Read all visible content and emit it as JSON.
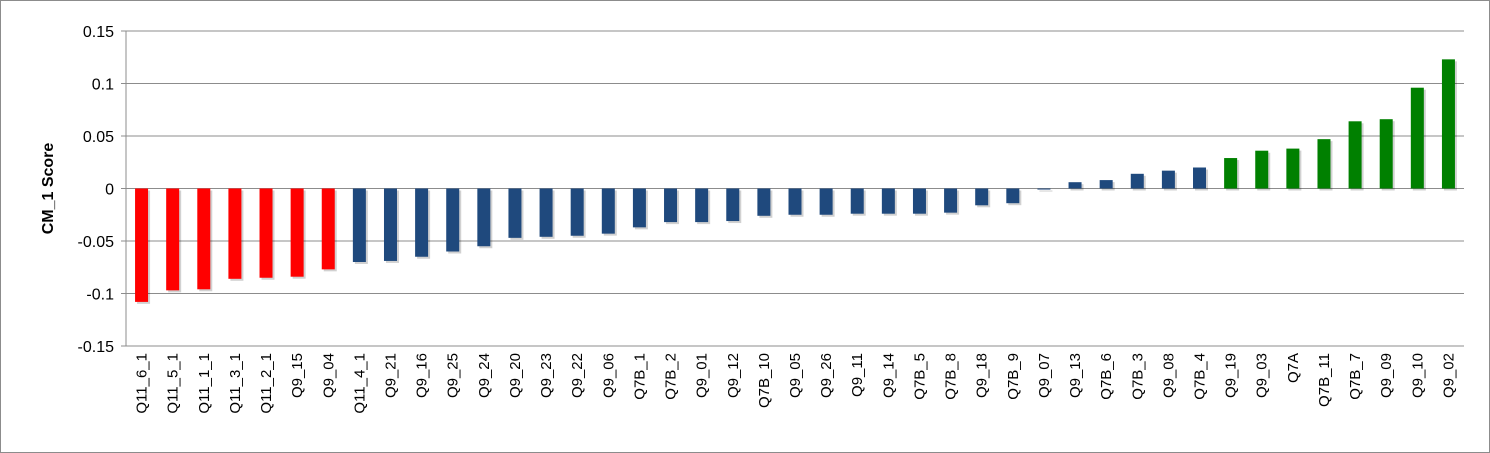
{
  "chart_data": {
    "type": "bar",
    "title": "",
    "xlabel": "",
    "ylabel": "CM_1 Score",
    "ylim": [
      -0.15,
      0.15
    ],
    "yticks": [
      0.15,
      0.1,
      0.05,
      0,
      -0.05,
      -0.1,
      -0.15
    ],
    "ytick_labels": [
      "0.15",
      "0.1",
      "0.05",
      "0",
      "-0.05",
      "-0.1",
      "-0.15"
    ],
    "grid": "horizontal",
    "legend": "none",
    "categories": [
      "Q11_6_1",
      "Q11_5_1",
      "Q11_1_1",
      "Q11_3_1",
      "Q11_2_1",
      "Q9_15",
      "Q9_04",
      "Q11_4_1",
      "Q9_21",
      "Q9_16",
      "Q9_25",
      "Q9_24",
      "Q9_20",
      "Q9_23",
      "Q9_22",
      "Q9_06",
      "Q7B_1",
      "Q7B_2",
      "Q9_01",
      "Q9_12",
      "Q7B_10",
      "Q9_05",
      "Q9_26",
      "Q9_11",
      "Q9_14",
      "Q7B_5",
      "Q7B_8",
      "Q9_18",
      "Q7B_9",
      "Q9_07",
      "Q9_13",
      "Q7B_6",
      "Q7B_3",
      "Q9_08",
      "Q7B_4",
      "Q9_19",
      "Q9_03",
      "Q7A",
      "Q7B_11",
      "Q7B_7",
      "Q9_09",
      "Q9_10",
      "Q9_02"
    ],
    "values": [
      -0.108,
      -0.097,
      -0.096,
      -0.086,
      -0.085,
      -0.084,
      -0.077,
      -0.07,
      -0.069,
      -0.065,
      -0.06,
      -0.055,
      -0.047,
      -0.046,
      -0.045,
      -0.043,
      -0.037,
      -0.032,
      -0.032,
      -0.031,
      -0.026,
      -0.025,
      -0.025,
      -0.024,
      -0.024,
      -0.024,
      -0.023,
      -0.016,
      -0.014,
      -0.001,
      0.006,
      0.008,
      0.014,
      0.017,
      0.02,
      0.029,
      0.036,
      0.038,
      0.047,
      0.064,
      0.066,
      0.096,
      0.123
    ],
    "colors": [
      "#ff0000",
      "#ff0000",
      "#ff0000",
      "#ff0000",
      "#ff0000",
      "#ff0000",
      "#ff0000",
      "#1f497d",
      "#1f497d",
      "#1f497d",
      "#1f497d",
      "#1f497d",
      "#1f497d",
      "#1f497d",
      "#1f497d",
      "#1f497d",
      "#1f497d",
      "#1f497d",
      "#1f497d",
      "#1f497d",
      "#1f497d",
      "#1f497d",
      "#1f497d",
      "#1f497d",
      "#1f497d",
      "#1f497d",
      "#1f497d",
      "#1f497d",
      "#1f497d",
      "#1f497d",
      "#1f497d",
      "#1f497d",
      "#1f497d",
      "#1f497d",
      "#1f497d",
      "#008000",
      "#008000",
      "#008000",
      "#008000",
      "#008000",
      "#008000",
      "#008000",
      "#008000"
    ]
  }
}
